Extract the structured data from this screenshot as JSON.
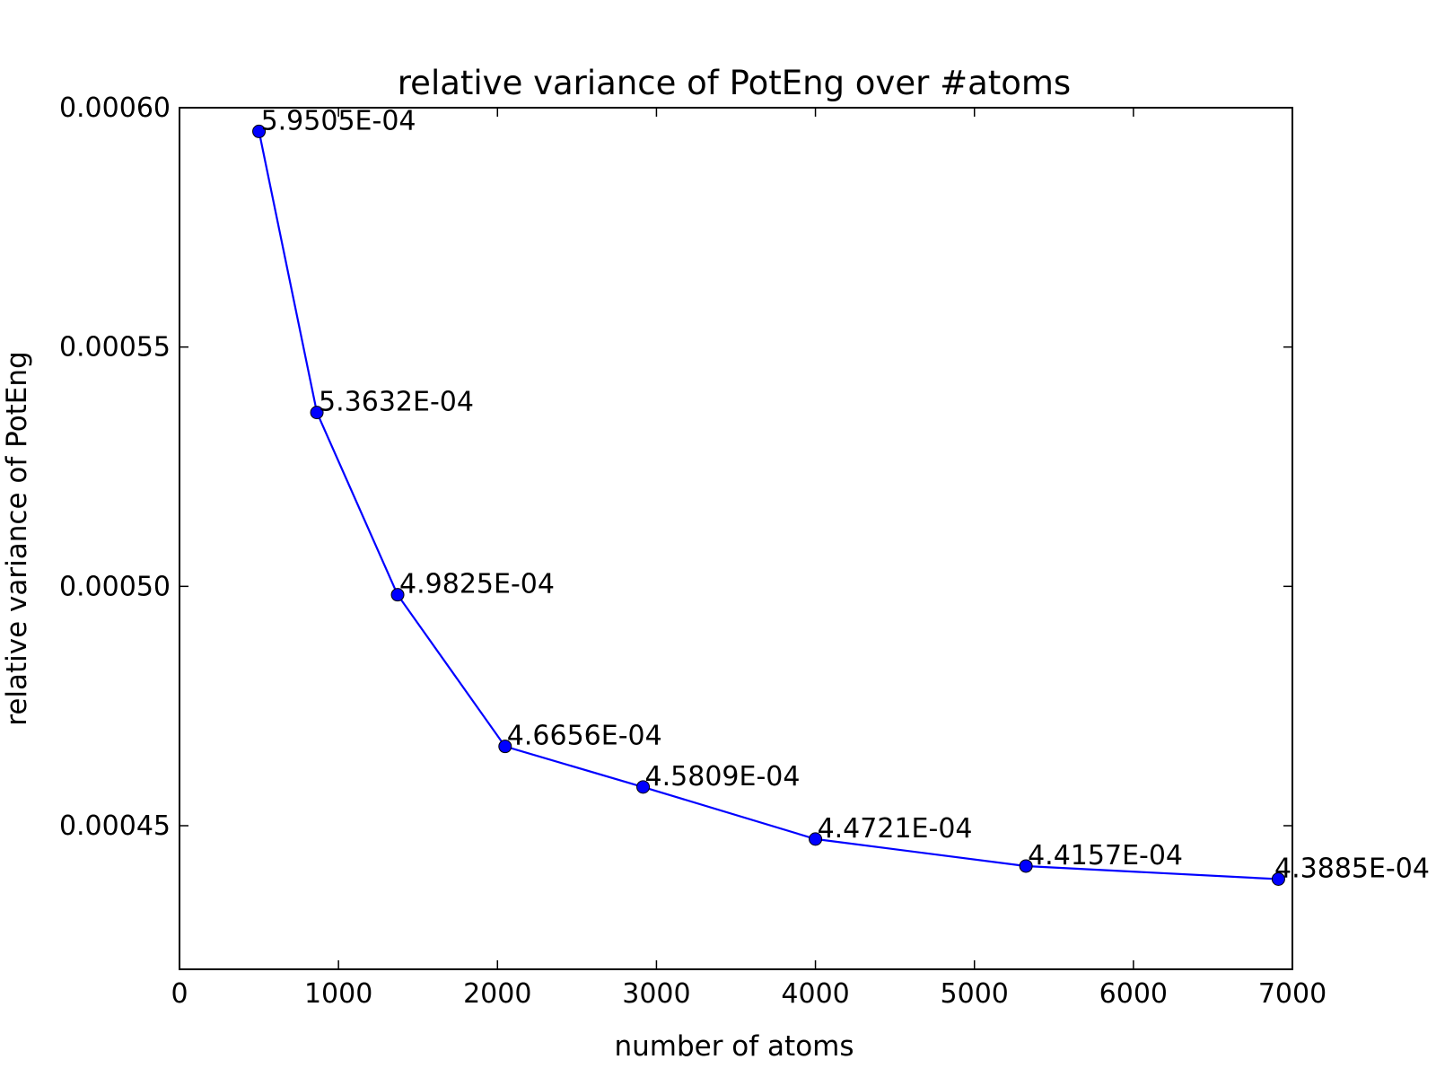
{
  "chart_data": {
    "type": "line",
    "title": "relative variance of PotEng over #atoms",
    "xlabel": "number of atoms",
    "ylabel": "relative variance of PotEng",
    "xlim": [
      0,
      7000
    ],
    "ylim": [
      0.00042,
      0.0006
    ],
    "x_ticks": [
      0,
      1000,
      2000,
      3000,
      4000,
      5000,
      6000,
      7000
    ],
    "x_tick_labels": [
      "0",
      "1000",
      "2000",
      "3000",
      "4000",
      "5000",
      "6000",
      "7000"
    ],
    "y_ticks": [
      0.00045,
      0.0005,
      0.00055,
      0.0006
    ],
    "y_tick_labels": [
      "0.00045",
      "0.00050",
      "0.00055",
      "0.00060"
    ],
    "grid": false,
    "series": [
      {
        "color": "#0000ff",
        "marker": "circle",
        "x": [
          500,
          864,
          1372,
          2048,
          2916,
          4000,
          5324,
          6912
        ],
        "y": [
          0.00059505,
          0.00053632,
          0.00049825,
          0.00046656,
          0.00045809,
          0.00044721,
          0.00044157,
          0.00043885
        ],
        "labels": [
          "5.9505E-04",
          "5.3632E-04",
          "4.9825E-04",
          "4.6656E-04",
          "4.5809E-04",
          "4.4721E-04",
          "4.4157E-04",
          "4.3885E-04"
        ]
      }
    ]
  }
}
